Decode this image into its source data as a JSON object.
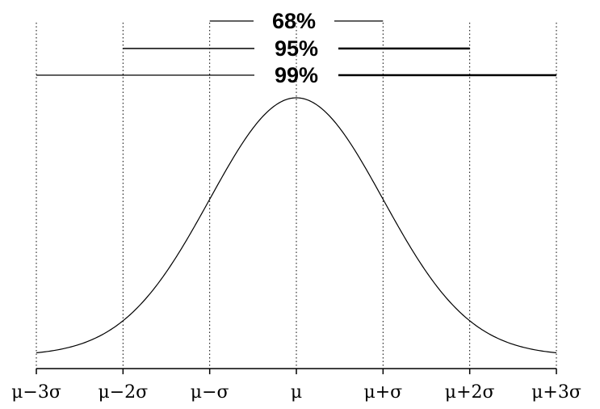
{
  "chart_data": {
    "type": "line",
    "title": "",
    "xlabel": "",
    "ylabel": "",
    "x_ticks": [
      {
        "value": -3,
        "label": "μ−3σ"
      },
      {
        "value": -2,
        "label": "μ−2σ"
      },
      {
        "value": -1,
        "label": "μ−σ"
      },
      {
        "value": 0,
        "label": "μ"
      },
      {
        "value": 1,
        "label": "μ+σ"
      },
      {
        "value": 2,
        "label": "μ+2σ"
      },
      {
        "value": 3,
        "label": "μ+3σ"
      }
    ],
    "xlim": [
      -3,
      3
    ],
    "curve": {
      "shape": "normal density",
      "mean": 0,
      "sd": 1
    },
    "intervals": [
      {
        "label": "68%",
        "from": -1,
        "to": 1
      },
      {
        "label": "95%",
        "from": -2,
        "to": 2
      },
      {
        "label": "99%",
        "from": -3,
        "to": 3
      }
    ],
    "gridlines": {
      "x": "dotted vertical at each tick",
      "y": false
    },
    "colors": {
      "curve": "#000000",
      "lines": "#000000",
      "background": "#ffffff"
    }
  }
}
